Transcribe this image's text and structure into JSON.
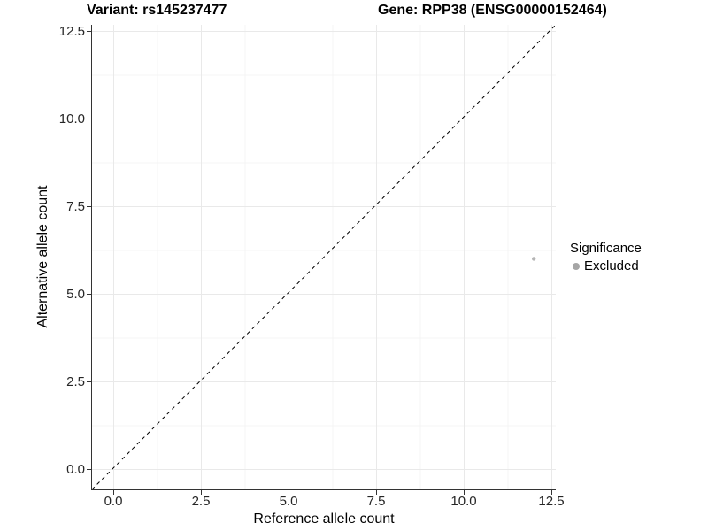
{
  "chart_data": {
    "type": "scatter",
    "title_left": "Variant: rs145237477",
    "title_right": "Gene: RPP38 (ENSG00000152464)",
    "xlabel": "Reference allele count",
    "ylabel": "Alternative allele count",
    "xlim": [
      -0.63,
      13.13
    ],
    "ylim": [
      -0.63,
      13.13
    ],
    "grid": "major and minor, light grey on white",
    "x_ticks": {
      "values": [
        0,
        2.5,
        5,
        7.5,
        10,
        12.5
      ],
      "labels": [
        "0.0",
        "2.5",
        "5.0",
        "7.5",
        "10.0",
        "12.5"
      ]
    },
    "y_ticks": {
      "values": [
        0,
        2.5,
        5,
        7.5,
        10,
        12.5
      ],
      "labels": [
        "0.0",
        "2.5",
        "5.0",
        "7.5",
        "10.0",
        "12.5"
      ]
    },
    "minor_ticks": [
      1.25,
      3.75,
      6.25,
      8.75,
      11.25
    ],
    "reference_line": {
      "type": "identity y=x",
      "style": "dashed",
      "color": "#000000"
    },
    "series": [
      {
        "name": "Excluded",
        "color": "#b5b5b5",
        "point_radius": 2.2,
        "points": [
          {
            "x": 12,
            "y": 6
          }
        ]
      }
    ],
    "legend": {
      "title": "Significance",
      "position": "right",
      "items": [
        {
          "label": "Excluded",
          "color": "#a6a6a6"
        }
      ]
    },
    "colors": {
      "background": "#ffffff",
      "axis_line": "#333333",
      "tick_mark": "#333333",
      "tick_label": "#262626",
      "grid_major": "#e9e9e9",
      "grid_minor": "#f4f4f4",
      "identity_line": "#000000",
      "point": "#b5b5b5",
      "legend_key": "#a6a6a6"
    }
  }
}
